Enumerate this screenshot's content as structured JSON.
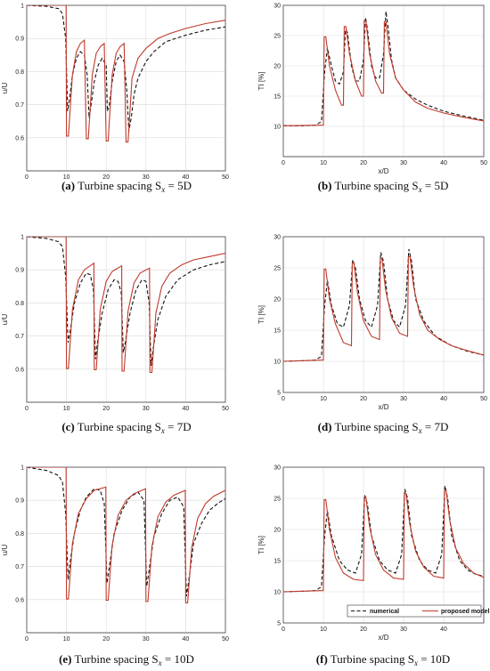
{
  "colors": {
    "numerical": "#111111",
    "proposed": "#c0392b",
    "grid": "#d9d9d9",
    "axis": "#555555"
  },
  "legend": {
    "numerical": "numerical",
    "proposed": "proposed model",
    "placement": "bottom-right of panel f"
  },
  "chart_data": [
    {
      "id": "a",
      "type": "line",
      "caption_label": "(a)",
      "caption_text": "Turbine spacing S",
      "caption_sub": "x",
      "caption_value": "= 5D",
      "ylabel": "u/U",
      "xlabel": "",
      "xlim": [
        0,
        50
      ],
      "ylim": [
        0.5,
        1.0
      ],
      "xticks": [
        "0",
        "10",
        "20",
        "30",
        "40",
        "50"
      ],
      "yticks": [
        "0.6",
        "0.7",
        "0.8",
        "0.9",
        "1"
      ],
      "ytick_values": [
        0.6,
        0.7,
        0.8,
        0.9,
        1.0
      ],
      "grid": true,
      "turbines": [
        10,
        15,
        20,
        25
      ],
      "series": [
        {
          "name": "numerical",
          "style": "dashed",
          "x": [
            0,
            5,
            8,
            9,
            9.8,
            10.3,
            10.8,
            11.5,
            12.5,
            13.5,
            14.5,
            15.2,
            15.7,
            16.2,
            17,
            18,
            19,
            20,
            20.3,
            20.8,
            21.5,
            22.5,
            23.5,
            24.5,
            25.2,
            25.7,
            26.3,
            27,
            28,
            30,
            32,
            35,
            40,
            45,
            50
          ],
          "y": [
            1.0,
            0.997,
            0.99,
            0.975,
            0.9,
            0.68,
            0.72,
            0.79,
            0.84,
            0.86,
            0.85,
            0.79,
            0.66,
            0.7,
            0.77,
            0.82,
            0.84,
            0.82,
            0.68,
            0.7,
            0.77,
            0.83,
            0.85,
            0.83,
            0.74,
            0.62,
            0.66,
            0.73,
            0.78,
            0.83,
            0.86,
            0.89,
            0.91,
            0.925,
            0.935
          ]
        },
        {
          "name": "proposed model",
          "style": "solid",
          "x": [
            0,
            9.9,
            10,
            10.5,
            11.5,
            12.5,
            13.5,
            14.5,
            15,
            15.5,
            16.5,
            17.5,
            18.5,
            19.5,
            20,
            20.5,
            21.5,
            22.5,
            23.5,
            24.5,
            25,
            25.5,
            26.5,
            28,
            30,
            33,
            36,
            40,
            45,
            50
          ],
          "y": [
            1.0,
            1.0,
            0.605,
            0.605,
            0.79,
            0.86,
            0.885,
            0.895,
            0.597,
            0.597,
            0.79,
            0.855,
            0.875,
            0.885,
            0.59,
            0.59,
            0.79,
            0.855,
            0.875,
            0.885,
            0.587,
            0.587,
            0.78,
            0.84,
            0.87,
            0.9,
            0.915,
            0.93,
            0.945,
            0.955
          ]
        }
      ]
    },
    {
      "id": "b",
      "type": "line",
      "caption_label": "(b)",
      "caption_text": "Turbine spacing S",
      "caption_sub": "x",
      "caption_value": "= 5D",
      "ylabel": "TI [%]",
      "xlabel": "x/D",
      "xlim": [
        0,
        50
      ],
      "ylim": [
        5,
        30
      ],
      "xticks": [
        "0",
        "10",
        "20",
        "30",
        "40",
        "50"
      ],
      "yticks": [
        "10",
        "15",
        "20",
        "25",
        "30"
      ],
      "ytick_values": [
        10,
        15,
        20,
        25,
        30
      ],
      "grid": true,
      "series": [
        {
          "name": "numerical",
          "style": "dashed",
          "x": [
            0,
            5,
            8,
            9.5,
            10.3,
            11,
            12,
            13,
            14,
            15,
            15.5,
            16,
            17,
            18,
            19,
            20,
            20.5,
            21,
            22,
            23,
            24,
            25,
            25.6,
            26.2,
            27,
            28,
            30,
            33,
            36,
            40,
            45,
            50
          ],
          "y": [
            10.1,
            10.1,
            10.2,
            10.8,
            19,
            23,
            20,
            17.5,
            17,
            19,
            26,
            25.5,
            20,
            17.5,
            17.5,
            21,
            28,
            26,
            20,
            18,
            18,
            22,
            29,
            26,
            21,
            18,
            16,
            14.5,
            13.5,
            12.5,
            11.7,
            11.0
          ]
        },
        {
          "name": "proposed model",
          "style": "solid",
          "x": [
            0,
            10,
            10.2,
            10.6,
            11.5,
            13,
            14.5,
            15,
            15.2,
            15.6,
            16.5,
            18,
            19.5,
            20,
            20.2,
            20.6,
            21.5,
            23,
            24.5,
            25,
            25.2,
            25.6,
            26.5,
            28,
            30,
            33,
            36,
            40,
            45,
            50
          ],
          "y": [
            10.1,
            10.2,
            24.8,
            24.8,
            20,
            16,
            13.5,
            13.5,
            26.5,
            26.5,
            22,
            17.5,
            15,
            15,
            27.5,
            27.5,
            22,
            17.5,
            15.5,
            15.5,
            27.3,
            27.3,
            22,
            18,
            16,
            14,
            13,
            12.2,
            11.5,
            10.9
          ]
        }
      ]
    },
    {
      "id": "c",
      "type": "line",
      "caption_label": "(c)",
      "caption_text": "Turbine spacing S",
      "caption_sub": "x",
      "caption_value": "= 7D",
      "ylabel": "u/U",
      "xlabel": "",
      "xlim": [
        0,
        50
      ],
      "ylim": [
        0.5,
        1.0
      ],
      "xticks": [
        "0",
        "10",
        "20",
        "30",
        "40",
        "50"
      ],
      "yticks": [
        "0.6",
        "0.7",
        "0.8",
        "0.9",
        "1"
      ],
      "ytick_values": [
        0.6,
        0.7,
        0.8,
        0.9,
        1.0
      ],
      "grid": true,
      "turbines": [
        10,
        17,
        24,
        31
      ],
      "series": [
        {
          "name": "numerical",
          "style": "dashed",
          "x": [
            0,
            5,
            8,
            9,
            9.8,
            10.4,
            11,
            12,
            13.5,
            15,
            16,
            16.8,
            17.3,
            17.8,
            19,
            20.5,
            22,
            23,
            23.8,
            24.3,
            24.8,
            26,
            27.5,
            29,
            30,
            30.8,
            31.3,
            31.8,
            33,
            35,
            38,
            42,
            46,
            50
          ],
          "y": [
            1.0,
            0.995,
            0.985,
            0.97,
            0.88,
            0.68,
            0.72,
            0.8,
            0.86,
            0.89,
            0.885,
            0.84,
            0.63,
            0.68,
            0.77,
            0.84,
            0.87,
            0.865,
            0.83,
            0.65,
            0.68,
            0.77,
            0.84,
            0.87,
            0.865,
            0.8,
            0.61,
            0.66,
            0.75,
            0.82,
            0.87,
            0.9,
            0.915,
            0.925
          ]
        },
        {
          "name": "proposed model",
          "style": "solid",
          "x": [
            0,
            9.9,
            10,
            10.5,
            11.5,
            13,
            14.5,
            16.9,
            17,
            17.5,
            18.5,
            20,
            21.5,
            23.9,
            24,
            24.5,
            25.5,
            27,
            28.5,
            30.9,
            31,
            31.5,
            32.5,
            34,
            36,
            39,
            42,
            46,
            50
          ],
          "y": [
            1.0,
            1.0,
            0.602,
            0.602,
            0.78,
            0.87,
            0.9,
            0.92,
            0.598,
            0.598,
            0.78,
            0.865,
            0.895,
            0.912,
            0.594,
            0.594,
            0.775,
            0.86,
            0.89,
            0.905,
            0.59,
            0.59,
            0.77,
            0.85,
            0.89,
            0.915,
            0.93,
            0.94,
            0.95
          ]
        }
      ]
    },
    {
      "id": "d",
      "type": "line",
      "caption_label": "(d)",
      "caption_text": "Turbine spacing S",
      "caption_sub": "x",
      "caption_value": "= 7D",
      "ylabel": "TI [%]",
      "xlabel": "x/D",
      "xlim": [
        0,
        50
      ],
      "ylim": [
        5,
        30
      ],
      "xticks": [
        "0",
        "10",
        "20",
        "30",
        "40",
        "50"
      ],
      "yticks": [
        "5",
        "10",
        "15",
        "20",
        "25",
        "30"
      ],
      "ytick_values": [
        5,
        10,
        15,
        20,
        25,
        30
      ],
      "grid": true,
      "series": [
        {
          "name": "numerical",
          "style": "dashed",
          "x": [
            0,
            5,
            8,
            9.5,
            10.3,
            11,
            12,
            13.5,
            15,
            16.5,
            17.3,
            18,
            19,
            20.5,
            22,
            23.5,
            24.3,
            25,
            26,
            27.5,
            29,
            30.5,
            31.3,
            32,
            33,
            35,
            38,
            42,
            46,
            50
          ],
          "y": [
            10.0,
            10.1,
            10.2,
            10.8,
            19,
            23,
            19,
            16,
            15.5,
            19,
            26.3,
            25,
            20,
            16.5,
            15.5,
            19,
            27.5,
            26,
            20,
            16.5,
            15.5,
            19,
            28,
            26,
            20,
            16.5,
            14,
            12.5,
            11.6,
            11.0
          ]
        },
        {
          "name": "proposed model",
          "style": "solid",
          "x": [
            0,
            10,
            10.2,
            10.6,
            11.5,
            13,
            15,
            17,
            17.2,
            17.6,
            18.5,
            20,
            22,
            24,
            24.2,
            24.6,
            25.5,
            27,
            29,
            31,
            31.2,
            31.6,
            32.5,
            34,
            36,
            39,
            42,
            46,
            50
          ],
          "y": [
            10.0,
            10.2,
            24.8,
            24.8,
            20,
            16,
            13,
            12.5,
            25.8,
            25.8,
            21,
            16.5,
            14,
            13.5,
            26.5,
            26.5,
            21.5,
            17,
            14.5,
            14,
            26.8,
            26.8,
            22,
            17.5,
            15,
            13.5,
            12.5,
            11.7,
            11.0
          ]
        }
      ]
    },
    {
      "id": "e",
      "type": "line",
      "caption_label": "(e)",
      "caption_text": "Turbine spacing S",
      "caption_sub": "x",
      "caption_value": "= 10D",
      "ylabel": "u/U",
      "xlabel": "",
      "xlim": [
        0,
        50
      ],
      "ylim": [
        0.5,
        1.0
      ],
      "xticks": [
        "0",
        "10",
        "20",
        "30",
        "40",
        "50"
      ],
      "yticks": [
        "0.6",
        "0.7",
        "0.8",
        "0.9",
        "1"
      ],
      "ytick_values": [
        0.6,
        0.7,
        0.8,
        0.9,
        1.0
      ],
      "grid": true,
      "turbines": [
        10,
        20,
        30,
        40
      ],
      "series": [
        {
          "name": "numerical",
          "style": "dashed",
          "x": [
            0,
            5,
            8,
            9,
            9.8,
            10.4,
            11,
            12,
            13.5,
            15,
            17,
            18.5,
            19.5,
            20.2,
            20.8,
            22,
            24,
            26,
            28,
            29.5,
            30.2,
            30.8,
            32,
            34,
            36,
            38,
            39.5,
            40.2,
            40.8,
            42,
            44,
            46,
            48,
            50
          ],
          "y": [
            1.0,
            0.99,
            0.975,
            0.955,
            0.86,
            0.66,
            0.72,
            0.8,
            0.87,
            0.91,
            0.935,
            0.93,
            0.89,
            0.65,
            0.7,
            0.8,
            0.87,
            0.91,
            0.925,
            0.9,
            0.64,
            0.69,
            0.79,
            0.86,
            0.9,
            0.91,
            0.88,
            0.61,
            0.66,
            0.77,
            0.83,
            0.87,
            0.89,
            0.905
          ]
        },
        {
          "name": "proposed model",
          "style": "solid",
          "x": [
            0,
            9.9,
            10,
            10.5,
            11.5,
            13,
            15,
            17,
            19.9,
            20,
            20.5,
            21.5,
            23,
            25,
            27,
            29.9,
            30,
            30.5,
            31.5,
            33,
            35,
            37,
            39.9,
            40,
            40.5,
            41.5,
            43,
            45,
            47,
            50
          ],
          "y": [
            1.0,
            1.0,
            0.602,
            0.602,
            0.77,
            0.86,
            0.905,
            0.93,
            0.94,
            0.598,
            0.598,
            0.765,
            0.855,
            0.9,
            0.92,
            0.935,
            0.594,
            0.594,
            0.76,
            0.85,
            0.895,
            0.915,
            0.93,
            0.59,
            0.59,
            0.755,
            0.845,
            0.89,
            0.912,
            0.93
          ]
        }
      ]
    },
    {
      "id": "f",
      "type": "line",
      "caption_label": "(f)",
      "caption_text": "Turbine spacing S",
      "caption_sub": "x",
      "caption_value": "= 10D",
      "ylabel": "TI [%]",
      "xlabel": "x/D",
      "xlim": [
        0,
        50
      ],
      "ylim": [
        5,
        30
      ],
      "xticks": [
        "0",
        "10",
        "20",
        "30",
        "40"
      ],
      "yticks": [
        "5",
        "10",
        "15",
        "20",
        "25",
        "30"
      ],
      "ytick_values": [
        5,
        10,
        15,
        20,
        25,
        30
      ],
      "grid": true,
      "legend": true,
      "series": [
        {
          "name": "numerical",
          "style": "dashed",
          "x": [
            0,
            5,
            8,
            9.5,
            10.3,
            11,
            12,
            14,
            16,
            18,
            19.5,
            20.3,
            21,
            22,
            24,
            26,
            28,
            29.5,
            30.3,
            31,
            32,
            34,
            36,
            38,
            39.5,
            40.3,
            41,
            42,
            44,
            46,
            48,
            50
          ],
          "y": [
            10.0,
            10.1,
            10.2,
            10.8,
            19,
            23,
            19,
            15,
            13.5,
            13,
            16,
            25.5,
            24,
            19,
            15,
            13.5,
            13,
            16,
            26.5,
            25,
            19,
            15,
            13.5,
            13,
            16,
            27,
            25,
            19,
            15,
            13.5,
            12.8,
            12.5
          ]
        },
        {
          "name": "proposed model",
          "style": "solid",
          "x": [
            0,
            10,
            10.2,
            10.6,
            11.5,
            13,
            15,
            17.5,
            20,
            20.2,
            20.6,
            21.5,
            23,
            25,
            27.5,
            30,
            30.2,
            30.6,
            31.5,
            33,
            35,
            37.5,
            40,
            40.2,
            40.6,
            41.5,
            43,
            45,
            47.5,
            50
          ],
          "y": [
            10.0,
            10.2,
            24.8,
            24.8,
            20,
            15.5,
            13,
            12,
            11.8,
            25.2,
            25.2,
            20.5,
            16,
            13.5,
            12.2,
            12,
            25.8,
            25.8,
            21,
            16.5,
            14,
            12.5,
            12.2,
            26.3,
            26.3,
            21.5,
            17,
            14.5,
            13,
            12.3
          ]
        }
      ]
    }
  ]
}
